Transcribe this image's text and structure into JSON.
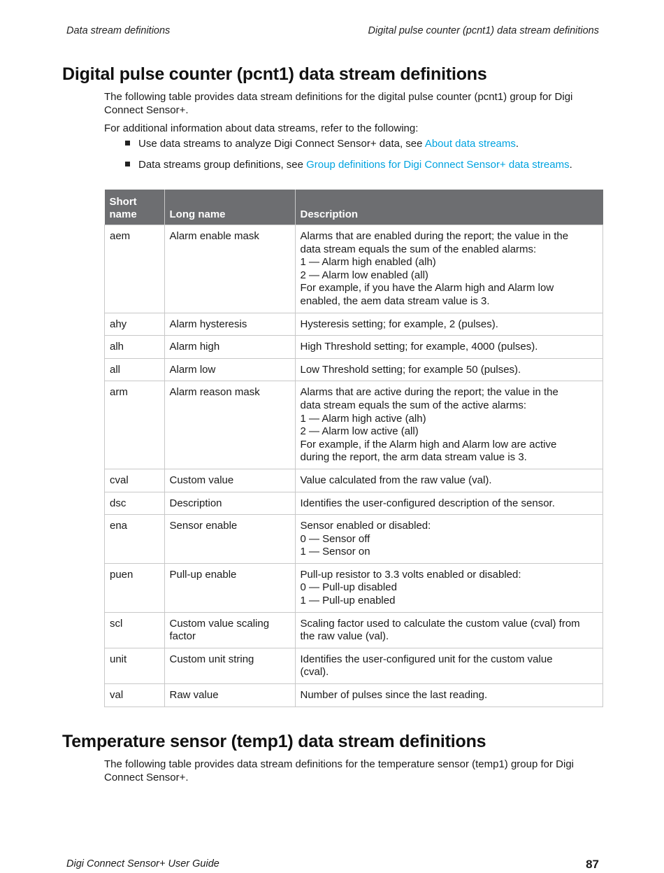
{
  "header": {
    "left": "Data stream definitions",
    "right": "Digital pulse counter (pcnt1) data stream definitions"
  },
  "section1": {
    "title": "Digital pulse counter (pcnt1) data stream definitions",
    "intro": "The following table provides data stream definitions for the digital pulse counter (pcnt1) group for Digi Connect Sensor+.",
    "refer": "For additional information about data streams, refer to the following:",
    "bullets": [
      {
        "text": "Use data streams to analyze Digi Connect Sensor+ data, see ",
        "link": "About data streams",
        "end": "."
      },
      {
        "text": "Data streams group definitions, see ",
        "link": "Group definitions for Digi Connect Sensor+ data streams",
        "end": "."
      }
    ],
    "table": {
      "headers": [
        "Short name",
        "Long name",
        "Description"
      ],
      "rows": [
        {
          "short": "aem",
          "long": [
            "Alarm enable mask"
          ],
          "desc": [
            "Alarms that are enabled during the report; the value in the",
            "data stream equals the sum of the enabled alarms:",
            "1 — Alarm high enabled (alh)",
            "2 — Alarm low enabled (all)",
            "For example, if you have the Alarm high and Alarm low",
            "enabled, the aem data stream value is 3."
          ]
        },
        {
          "short": "ahy",
          "long": [
            "Alarm hysteresis"
          ],
          "desc": [
            "Hysteresis setting; for example, 2 (pulses)."
          ]
        },
        {
          "short": "alh",
          "long": [
            "Alarm high"
          ],
          "desc": [
            "High Threshold setting; for example, 4000 (pulses)."
          ]
        },
        {
          "short": "all",
          "long": [
            "Alarm low"
          ],
          "desc": [
            "Low Threshold setting; for example 50 (pulses)."
          ]
        },
        {
          "short": "arm",
          "long": [
            "Alarm reason mask"
          ],
          "desc": [
            "Alarms that are active during the report; the value in the",
            "data stream equals the sum of the active alarms:",
            "1 — Alarm high active (alh)",
            "2 — Alarm low active (all)",
            "For example, if the Alarm high and Alarm low are active",
            "during the report, the arm data stream value is 3."
          ]
        },
        {
          "short": "cval",
          "long": [
            "Custom value"
          ],
          "desc": [
            "Value calculated from the raw value (val)."
          ]
        },
        {
          "short": "dsc",
          "long": [
            "Description"
          ],
          "desc": [
            "Identifies the user-configured description of the sensor."
          ]
        },
        {
          "short": "ena",
          "long": [
            "Sensor enable"
          ],
          "desc": [
            "Sensor enabled or disabled:",
            "0 — Sensor off",
            "1 — Sensor on"
          ]
        },
        {
          "short": "puen",
          "long": [
            "Pull-up enable"
          ],
          "desc": [
            "Pull-up resistor to 3.3 volts enabled or disabled:",
            "0 — Pull-up disabled",
            "1 — Pull-up enabled"
          ]
        },
        {
          "short": "scl",
          "long": [
            "Custom value scaling",
            "factor"
          ],
          "desc": [
            "Scaling factor used to calculate the custom value (cval) from",
            "the raw value (val)."
          ]
        },
        {
          "short": "unit",
          "long": [
            "Custom unit string"
          ],
          "desc": [
            "Identifies the user-configured unit for the custom value",
            "(cval)."
          ]
        },
        {
          "short": "val",
          "long": [
            "Raw value"
          ],
          "desc": [
            "Number of pulses since the last reading."
          ]
        }
      ]
    }
  },
  "section2": {
    "title": "Temperature sensor (temp1) data stream definitions",
    "intro": "The following table provides data stream definitions for the temperature sensor (temp1) group for Digi Connect Sensor+."
  },
  "footer": {
    "left": "Digi Connect Sensor+ User Guide",
    "page": "87"
  },
  "colors": {
    "table_header": "#6d6e71",
    "link": "#00a3e0"
  }
}
